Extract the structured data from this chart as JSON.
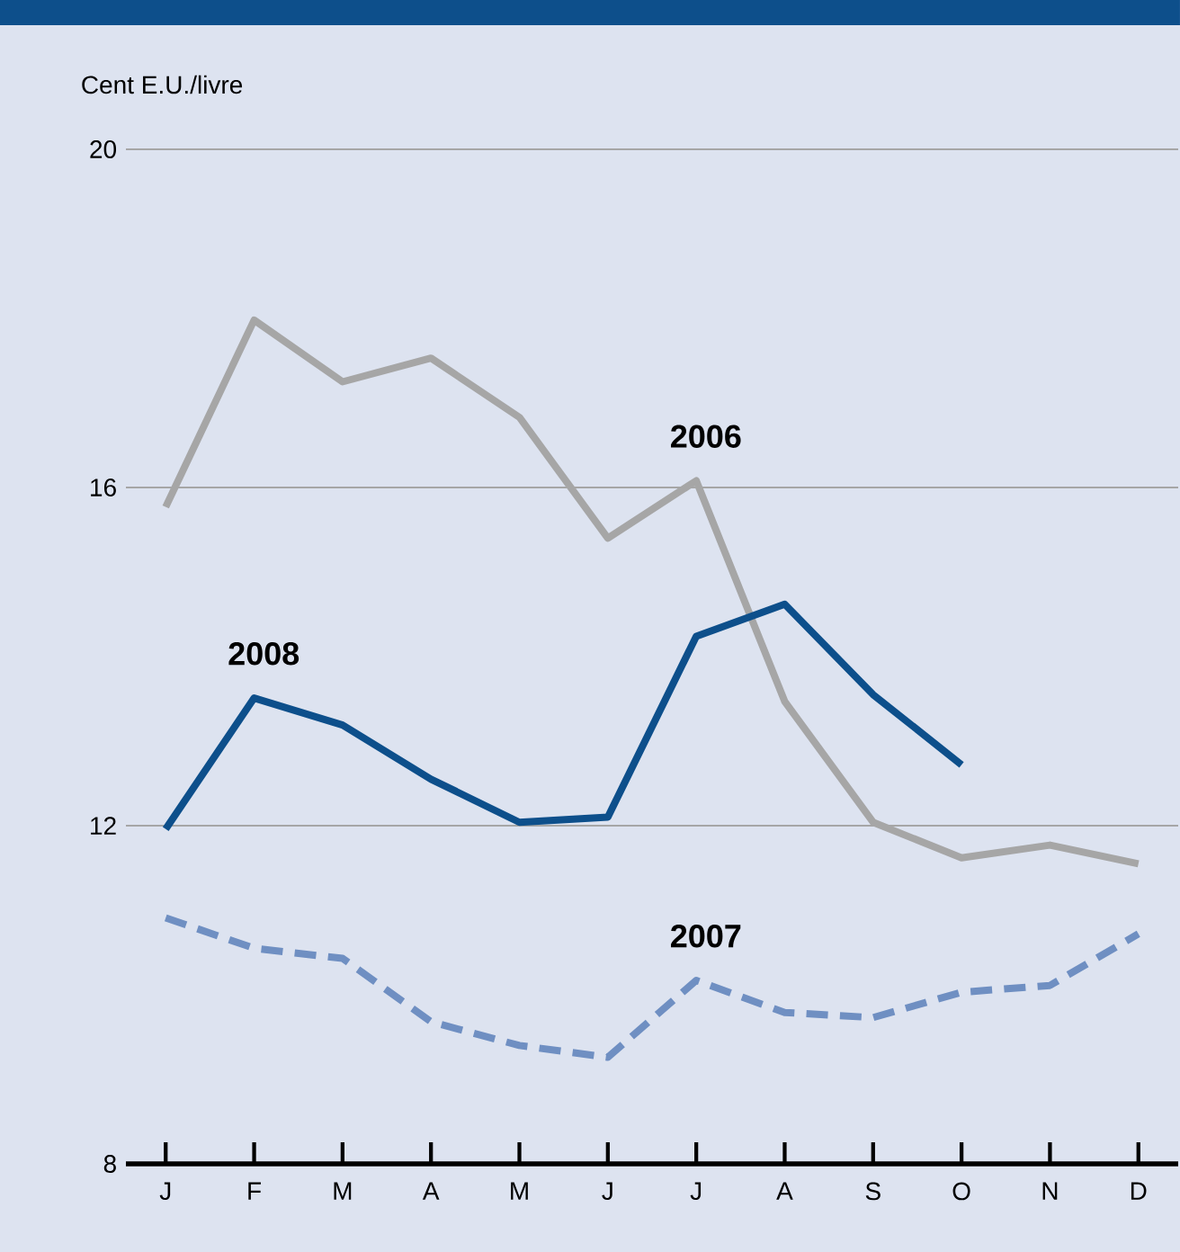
{
  "chart_data": {
    "type": "line",
    "ylabel": "Cent E.U./livre",
    "categories": [
      "J",
      "F",
      "M",
      "A",
      "M",
      "J",
      "J",
      "A",
      "S",
      "O",
      "N",
      "D"
    ],
    "series": [
      {
        "name": "2006",
        "color": "#a6a6a6",
        "line_style": "solid",
        "values": [
          15.77,
          17.98,
          17.25,
          17.53,
          16.83,
          15.4,
          16.08,
          13.47,
          12.04,
          11.62,
          11.77,
          11.55
        ]
      },
      {
        "name": "2008",
        "color": "#0d4f8b",
        "line_style": "solid",
        "values": [
          11.96,
          13.51,
          13.19,
          12.55,
          12.04,
          12.1,
          14.24,
          14.62,
          13.55,
          12.72,
          null,
          null
        ]
      },
      {
        "name": "2007",
        "color": "#6f8fc2",
        "line_style": "dashed",
        "values": [
          10.91,
          10.55,
          10.43,
          9.68,
          9.4,
          9.26,
          10.17,
          9.79,
          9.73,
          10.03,
          10.11,
          10.72
        ]
      }
    ],
    "ylim": [
      8,
      20
    ],
    "yticks": [
      8,
      12,
      16,
      20
    ],
    "grid": "y"
  }
}
